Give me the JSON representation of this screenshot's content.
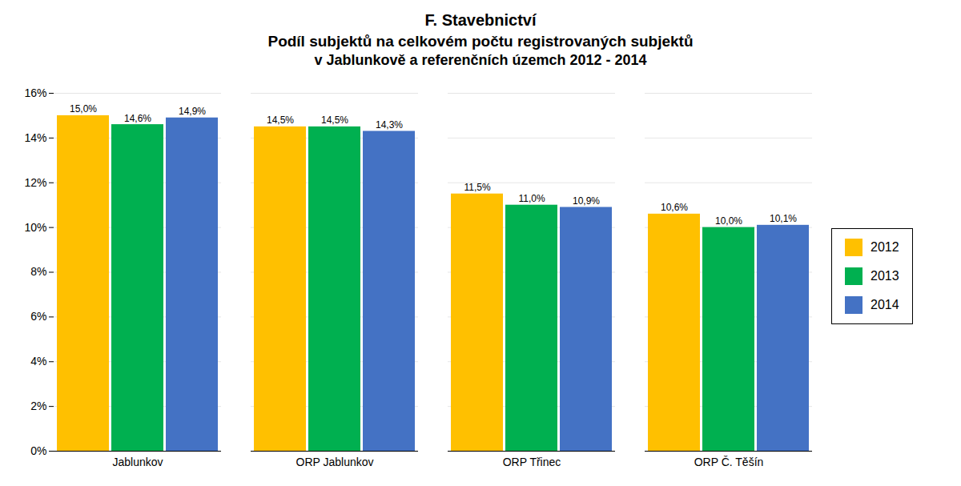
{
  "chart_data": {
    "type": "bar",
    "title": "F. Stavebnictví",
    "subtitle": [
      "Podíl subjektů na celkovém počtu registrovaných subjektů",
      "v Jablunkově a referenčních územch 2012 - 2014"
    ],
    "categories": [
      "Jablunkov",
      "ORP Jablunkov",
      "ORP Třinec",
      "ORP Č. Těšín"
    ],
    "series": [
      {
        "name": "2012",
        "color": "#FFC000",
        "values": [
          15.0,
          14.5,
          11.5,
          10.6
        ],
        "value_labels": [
          "15,0%",
          "14,5%",
          "11,5%",
          "10,6%"
        ]
      },
      {
        "name": "2013",
        "color": "#00B050",
        "values": [
          14.6,
          14.5,
          11.0,
          10.0
        ],
        "value_labels": [
          "14,6%",
          "14,5%",
          "11,0%",
          "10,0%"
        ]
      },
      {
        "name": "2014",
        "color": "#4472C4",
        "values": [
          14.9,
          14.3,
          10.9,
          10.1
        ],
        "value_labels": [
          "14,9%",
          "14,3%",
          "10,9%",
          "10,1%"
        ]
      }
    ],
    "ylim": [
      0,
      16
    ],
    "yticks": [
      {
        "value": 0,
        "label": "0%"
      },
      {
        "value": 2,
        "label": "2%"
      },
      {
        "value": 4,
        "label": "4%"
      },
      {
        "value": 6,
        "label": "6%"
      },
      {
        "value": 8,
        "label": "8%"
      },
      {
        "value": 10,
        "label": "10%"
      },
      {
        "value": 12,
        "label": "12%"
      },
      {
        "value": 14,
        "label": "14%"
      },
      {
        "value": 16,
        "label": "16%"
      }
    ],
    "grid": true,
    "data_labels": true,
    "legend": "right"
  }
}
